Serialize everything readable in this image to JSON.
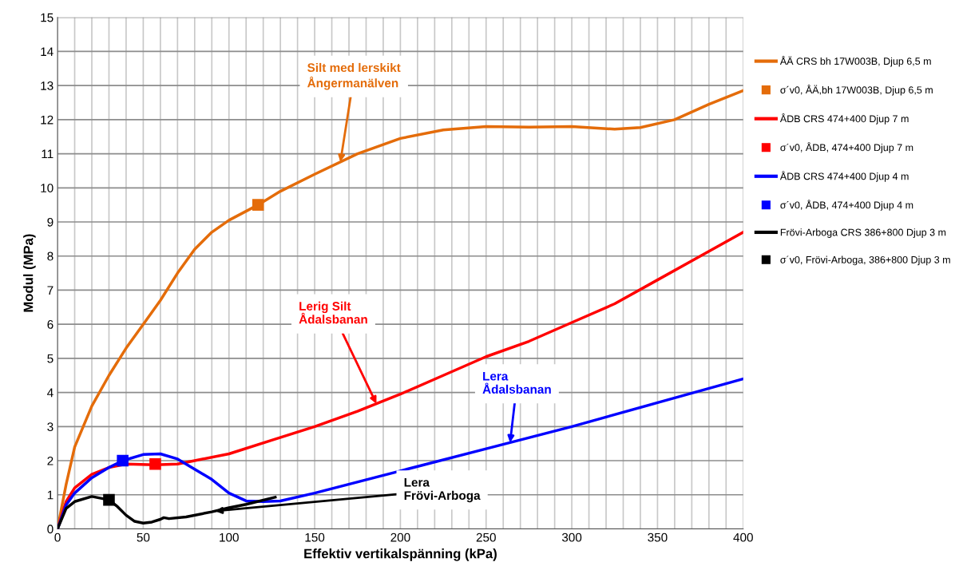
{
  "chart_data": {
    "type": "line",
    "xlabel": "Effektiv vertikalspänning (kPa)",
    "ylabel": "Modul (MPa)",
    "xlim": [
      0,
      400
    ],
    "ylim": [
      0,
      15
    ],
    "xticks": [
      0,
      {
        "value": 10,
        "label": null
      },
      {
        "value": 20,
        "label": null
      },
      {
        "value": 30,
        "label": null
      },
      {
        "value": 40,
        "label": null
      },
      50,
      {
        "value": 60,
        "label": null
      },
      {
        "value": 70,
        "label": null
      },
      {
        "value": 80,
        "label": null
      },
      {
        "value": 90,
        "label": null
      },
      100,
      {
        "value": 110,
        "label": null
      },
      {
        "value": 120,
        "label": null
      },
      {
        "value": 130,
        "label": null
      },
      {
        "value": 140,
        "label": null
      },
      150,
      {
        "value": 160,
        "label": null
      },
      {
        "value": 170,
        "label": null
      },
      {
        "value": 180,
        "label": null
      },
      {
        "value": 190,
        "label": null
      },
      200,
      {
        "value": 210,
        "label": null
      },
      {
        "value": 220,
        "label": null
      },
      {
        "value": 230,
        "label": null
      },
      {
        "value": 240,
        "label": null
      },
      250,
      {
        "value": 260,
        "label": null
      },
      {
        "value": 270,
        "label": null
      },
      {
        "value": 280,
        "label": null
      },
      {
        "value": 290,
        "label": null
      },
      300,
      {
        "value": 310,
        "label": null
      },
      {
        "value": 320,
        "label": null
      },
      {
        "value": 330,
        "label": null
      },
      {
        "value": 340,
        "label": null
      },
      350,
      {
        "value": 360,
        "label": null
      },
      {
        "value": 370,
        "label": null
      },
      {
        "value": 380,
        "label": null
      },
      {
        "value": 390,
        "label": null
      },
      400
    ],
    "yticks": [
      0,
      1,
      2,
      3,
      4,
      5,
      6,
      7,
      8,
      9,
      10,
      11,
      12,
      13,
      14,
      15
    ],
    "grid": true,
    "legend": "right",
    "line_style": "solid",
    "series": [
      {
        "name": "ÅÄ CRS bh 17W003B, Djup 6,5 m",
        "color": "#e46c0a",
        "x": [
          0,
          5,
          10,
          20,
          30,
          40,
          50,
          60,
          70,
          80,
          90,
          100,
          117,
          130,
          150,
          175,
          200,
          225,
          250,
          275,
          300,
          325,
          340,
          360,
          380,
          400
        ],
        "values": [
          0,
          1.3,
          2.4,
          3.6,
          4.5,
          5.3,
          6.0,
          6.7,
          7.5,
          8.2,
          8.7,
          9.05,
          9.5,
          9.9,
          10.4,
          11.0,
          11.45,
          11.7,
          11.8,
          11.78,
          11.8,
          11.72,
          11.77,
          12.0,
          12.45,
          12.85
        ]
      },
      {
        "name": "σ´v0, ÅÄ,bh 17W003B, Djup 6,5 m",
        "type": "scatter",
        "marker": "square",
        "color": "#e46c0a",
        "x": [
          117
        ],
        "values": [
          9.5
        ]
      },
      {
        "name": "ÅDB CRS 474+400 Djup 7 m",
        "color": "#ff0000",
        "x": [
          0,
          5,
          10,
          20,
          30,
          40,
          57,
          70,
          80,
          100,
          125,
          150,
          175,
          200,
          225,
          250,
          275,
          300,
          325,
          350,
          375,
          400
        ],
        "values": [
          0,
          0.8,
          1.2,
          1.6,
          1.8,
          1.9,
          1.88,
          1.9,
          2.0,
          2.2,
          2.6,
          3.0,
          3.45,
          3.95,
          4.5,
          5.05,
          5.5,
          6.05,
          6.6,
          7.3,
          8.0,
          8.7
        ]
      },
      {
        "name": "σ´v0, ÅDB, 474+400 Djup 7 m",
        "type": "scatter",
        "marker": "square",
        "color": "#ff0000",
        "x": [
          57
        ],
        "values": [
          1.9
        ]
      },
      {
        "name": "ÅDB CRS 474+400 Djup 4 m",
        "color": "#0000ff",
        "x": [
          0,
          5,
          10,
          20,
          30,
          38,
          50,
          60,
          70,
          80,
          90,
          100,
          110,
          120,
          130,
          150,
          200,
          250,
          300,
          350,
          400
        ],
        "values": [
          0,
          0.7,
          1.05,
          1.5,
          1.8,
          2.0,
          2.18,
          2.2,
          2.05,
          1.75,
          1.45,
          1.05,
          0.82,
          0.8,
          0.82,
          1.05,
          1.7,
          2.35,
          3.0,
          3.7,
          4.4
        ]
      },
      {
        "name": "σ´v0, ÅDB, 474+400 Djup 4 m",
        "type": "scatter",
        "marker": "square",
        "color": "#0000ff",
        "x": [
          38
        ],
        "values": [
          2.0
        ]
      },
      {
        "name": "Frövi-Arboga CRS 386+800 Djup 3 m",
        "color": "#000000",
        "x": [
          0,
          5,
          10,
          20,
          30,
          35,
          40,
          45,
          50,
          55,
          60,
          62,
          65,
          75,
          90,
          100,
          110,
          127
        ],
        "values": [
          0,
          0.6,
          0.8,
          0.95,
          0.85,
          0.65,
          0.4,
          0.22,
          0.17,
          0.2,
          0.28,
          0.33,
          0.3,
          0.35,
          0.5,
          0.62,
          0.72,
          0.93
        ]
      },
      {
        "name": "σ´v0, Frövi-Arboga, 386+800 Djup 3 m",
        "type": "scatter",
        "marker": "square",
        "color": "#000000",
        "x": [
          30
        ],
        "values": [
          0.85
        ]
      }
    ],
    "annotations": [
      {
        "text": "Silt med lerskikt\nÅngermanälven",
        "x": 165,
        "y": 10.76
      },
      {
        "text": "Lerig Silt\nÅdalsbanan",
        "x": 186,
        "y": 3.67
      },
      {
        "text": "Lera\nÅdalsbanan",
        "x": 264,
        "y": 2.53
      },
      {
        "text": "Lera\nFrövi-Arboga",
        "x": 92,
        "y": 0.52
      }
    ]
  }
}
